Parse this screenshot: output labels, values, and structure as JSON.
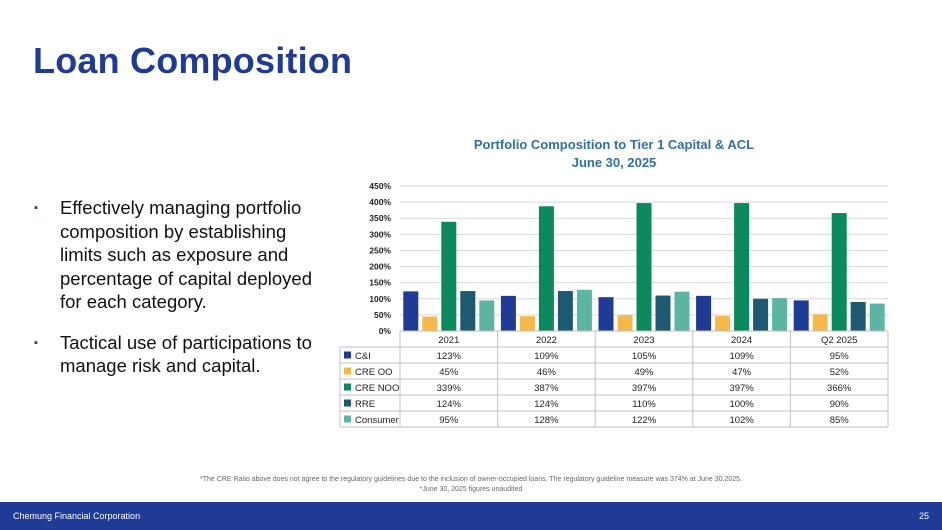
{
  "slide": {
    "title": "Loan Composition",
    "bullets": [
      "Effectively managing portfolio composition by establishing limits such as exposure and percentage of capital deployed for each category.",
      "Tactical use of participations to manage risk and capital."
    ],
    "bullet_marker": "▪",
    "footnotes": [
      "*The CRE Ratio above does not agree to the regulatory guidelines due to the inclusion of owner-occupied loans. The regulatory guideline measure was 374% at June 30,2025.",
      "*June 30, 2025 figures unaudited"
    ],
    "footer": {
      "company": "Chemung Financial Corporation",
      "page_number": "25"
    }
  },
  "chart_data": {
    "type": "bar",
    "title_line1": "Portfolio Composition to Tier 1 Capital & ACL",
    "title_line2": "June 30, 2025",
    "categories": [
      "2021",
      "2022",
      "2023",
      "2024",
      "Q2 2025"
    ],
    "ylim": [
      0,
      450
    ],
    "yticks": [
      0,
      50,
      100,
      150,
      200,
      250,
      300,
      350,
      400,
      450
    ],
    "ytick_labels": [
      "0%",
      "50%",
      "100%",
      "150%",
      "200%",
      "250%",
      "300%",
      "350%",
      "400%",
      "450%"
    ],
    "grid": true,
    "data_table": true,
    "series": [
      {
        "name": "C&I",
        "color": "#1f3b96",
        "values": [
          123,
          109,
          105,
          109,
          95
        ],
        "labels": [
          "123%",
          "109%",
          "105%",
          "109%",
          "95%"
        ]
      },
      {
        "name": "CRE OO",
        "color": "#f5b84a",
        "values": [
          45,
          46,
          49,
          47,
          52
        ],
        "labels": [
          "45%",
          "46%",
          "49%",
          "47%",
          "52%"
        ]
      },
      {
        "name": "CRE NOO",
        "color": "#0c8a5e",
        "values": [
          339,
          387,
          397,
          397,
          366
        ],
        "labels": [
          "339%",
          "387%",
          "397%",
          "397%",
          "366%"
        ]
      },
      {
        "name": "RRE",
        "color": "#1d5a72",
        "values": [
          124,
          124,
          110,
          100,
          90
        ],
        "labels": [
          "124%",
          "124%",
          "110%",
          "100%",
          "90%"
        ]
      },
      {
        "name": "Consumer",
        "color": "#5bb5a2",
        "values": [
          95,
          128,
          122,
          102,
          85
        ],
        "labels": [
          "95%",
          "128%",
          "122%",
          "102%",
          "85%"
        ]
      }
    ]
  }
}
